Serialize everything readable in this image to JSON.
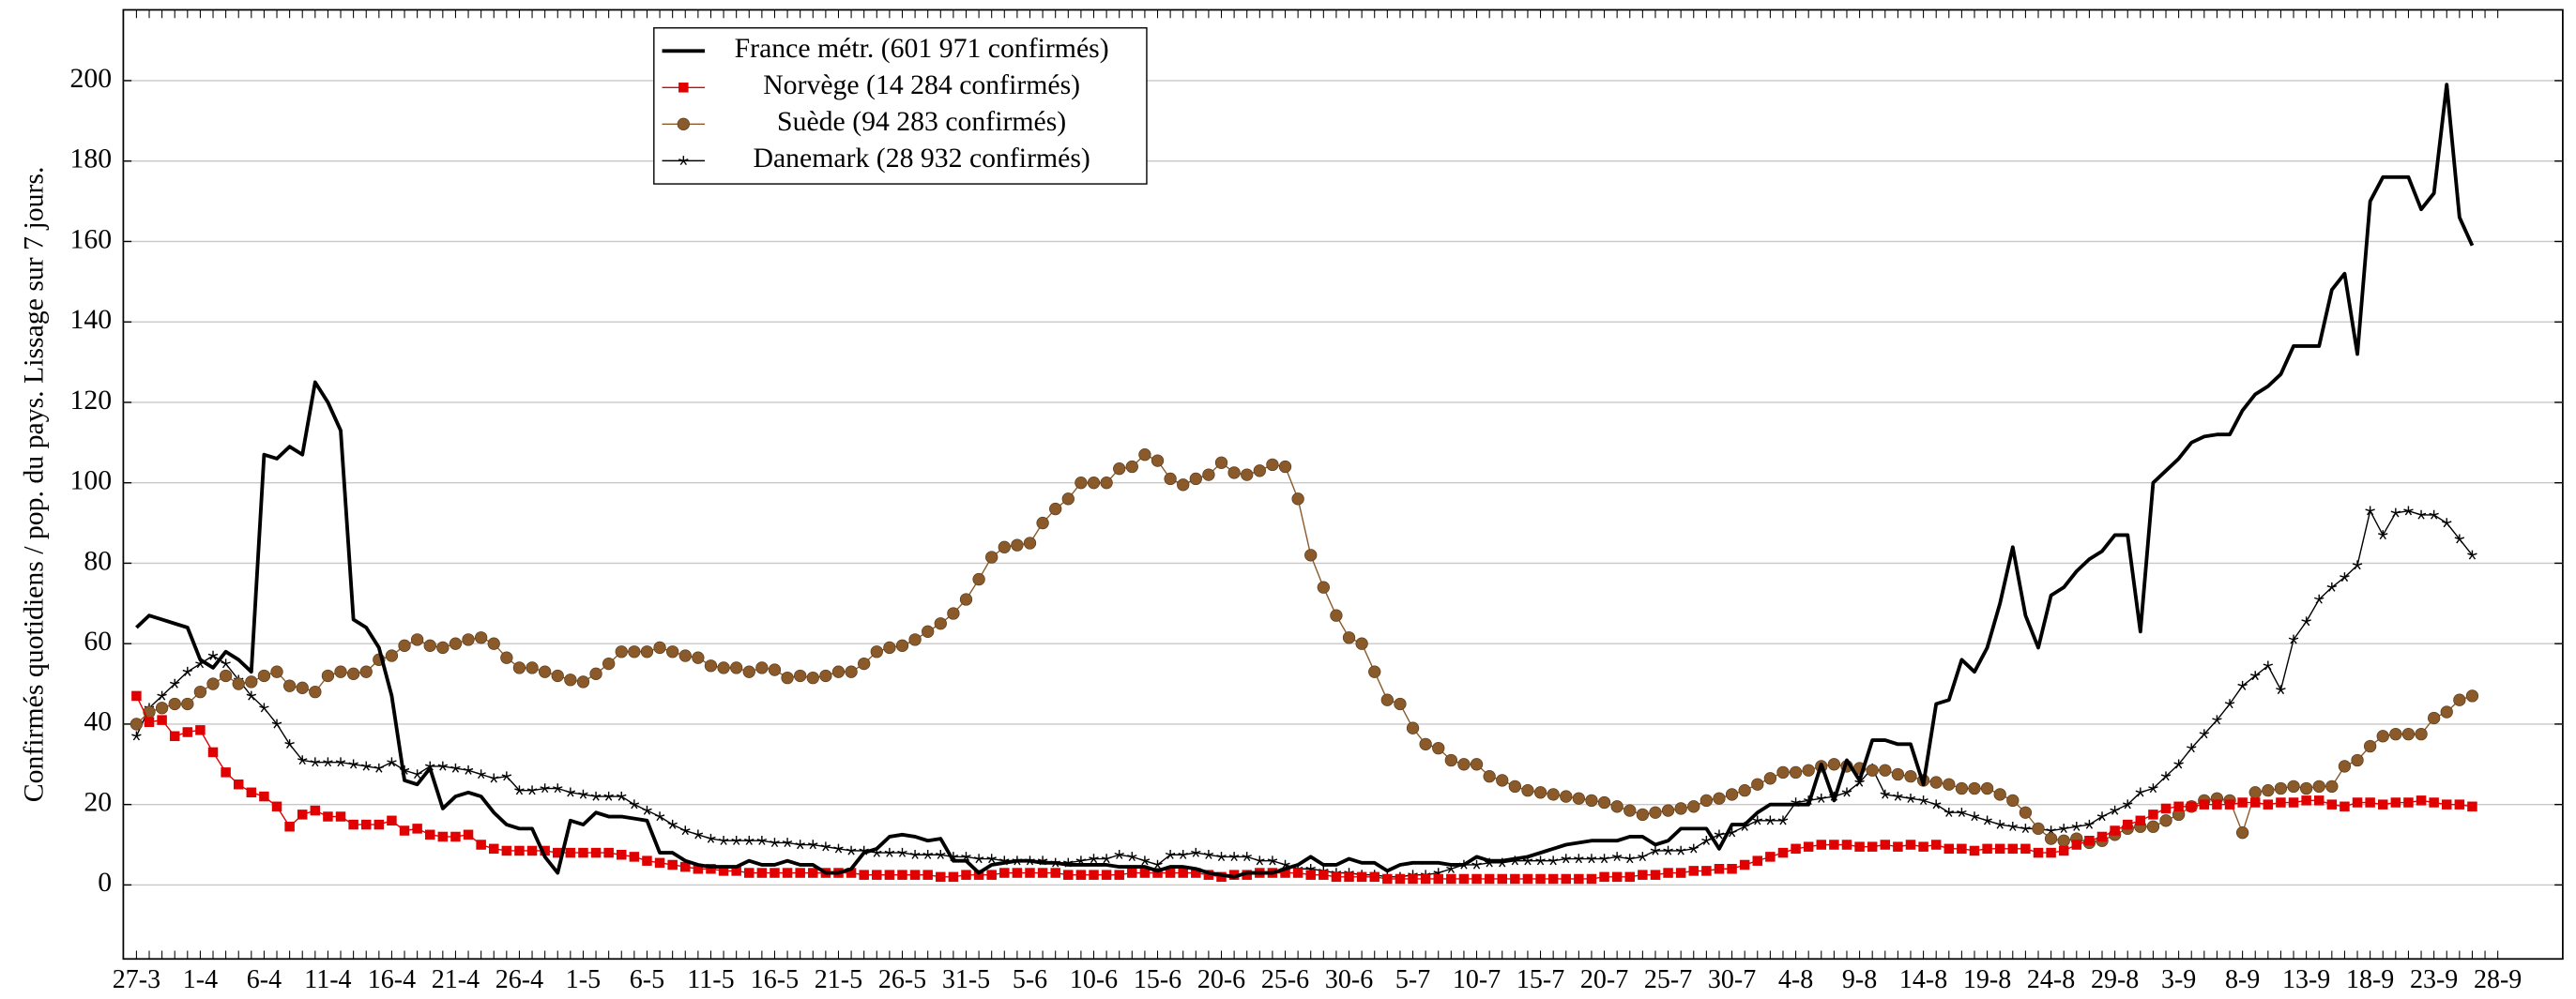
{
  "chart_data": {
    "type": "line",
    "y_label": "Confirmés quotidiens / pop. du pays. Lissage sur 7 jours.",
    "ylim": [
      -18.4,
      217.6
    ],
    "yticks": [
      0,
      20,
      40,
      60,
      80,
      100,
      120,
      140,
      160,
      180,
      200
    ],
    "grid": true,
    "categories": [
      "27-3",
      null,
      null,
      null,
      null,
      "1-4",
      null,
      null,
      null,
      null,
      "6-4",
      null,
      null,
      null,
      null,
      "11-4",
      null,
      null,
      null,
      null,
      "16-4",
      null,
      null,
      null,
      null,
      "21-4",
      null,
      null,
      null,
      null,
      "26-4",
      null,
      null,
      null,
      null,
      "1-5",
      null,
      null,
      null,
      null,
      "6-5",
      null,
      null,
      null,
      null,
      "11-5",
      null,
      null,
      null,
      null,
      "16-5",
      null,
      null,
      null,
      null,
      "21-5",
      null,
      null,
      null,
      null,
      "26-5",
      null,
      null,
      null,
      null,
      "31-5",
      null,
      null,
      null,
      null,
      "5-6",
      null,
      null,
      null,
      null,
      "10-6",
      null,
      null,
      null,
      null,
      "15-6",
      null,
      null,
      null,
      null,
      "20-6",
      null,
      null,
      null,
      null,
      "25-6",
      null,
      null,
      null,
      null,
      "30-6",
      null,
      null,
      null,
      null,
      "5-7",
      null,
      null,
      null,
      null,
      "10-7",
      null,
      null,
      null,
      null,
      "15-7",
      null,
      null,
      null,
      null,
      "20-7",
      null,
      null,
      null,
      null,
      "25-7",
      null,
      null,
      null,
      null,
      "30-7",
      null,
      null,
      null,
      null,
      "4-8",
      null,
      null,
      null,
      null,
      "9-8",
      null,
      null,
      null,
      null,
      "14-8",
      null,
      null,
      null,
      null,
      "19-8",
      null,
      null,
      null,
      null,
      "24-8",
      null,
      null,
      null,
      null,
      "29-8",
      null,
      null,
      null,
      null,
      "3-9",
      null,
      null,
      null,
      null,
      "8-9",
      null,
      null,
      null,
      null,
      "13-9",
      null,
      null,
      null,
      null,
      "18-9",
      null,
      null,
      null,
      null,
      "23-9",
      null,
      null,
      null,
      null,
      "28-9"
    ],
    "series": [
      {
        "name": "France métr. (601 971 confirmés)",
        "color": "#000000",
        "marker": "none",
        "line_width": 2.2,
        "values": [
          64,
          67,
          66,
          65,
          64,
          56,
          54,
          58,
          56,
          53,
          107,
          106,
          109,
          107,
          125,
          120,
          113,
          66,
          64,
          59,
          47,
          26,
          25,
          29,
          19,
          22,
          23,
          22,
          18,
          15,
          14,
          14,
          7,
          3,
          16,
          15,
          18,
          17,
          17,
          16.5,
          16,
          8,
          8,
          6,
          5,
          4.5,
          4.5,
          4.5,
          6,
          5,
          5,
          6,
          5,
          5,
          3,
          3,
          4,
          8,
          9,
          12,
          12.5,
          12,
          11,
          11.5,
          6,
          6,
          3,
          5,
          5.5,
          6,
          6,
          5.5,
          5.5,
          5,
          5,
          5,
          5,
          4.5,
          4.5,
          4.5,
          3.5,
          4.5,
          4.5,
          4,
          3,
          2.5,
          2,
          3,
          3,
          3,
          4,
          5,
          7,
          5,
          5,
          6.5,
          5.5,
          5.5,
          3.5,
          5,
          5.5,
          5.5,
          5.5,
          5,
          5,
          7,
          6,
          6,
          6.5,
          7,
          8,
          9,
          10,
          10.5,
          11,
          11,
          11,
          12,
          12,
          10,
          11,
          14,
          14,
          14,
          9,
          15,
          15,
          18,
          20,
          20,
          20,
          20,
          30,
          21,
          31,
          26,
          36,
          36,
          35,
          35,
          25,
          45,
          46,
          56,
          53,
          59,
          70,
          84,
          67,
          59,
          72,
          74,
          78,
          81,
          83,
          87,
          87,
          63,
          100,
          103,
          106,
          110,
          111.5,
          112,
          112,
          118,
          122,
          124,
          127,
          134,
          134,
          134,
          148,
          152,
          132,
          170,
          176,
          176,
          176,
          168,
          172,
          199,
          166,
          159,
          null,
          null
        ]
      },
      {
        "name": "Norvège (14 284 confirmés)",
        "color": "#e00000",
        "marker": "square",
        "line_width": 0.8,
        "values": [
          47,
          40.5,
          41,
          37,
          38,
          38.5,
          33,
          28,
          25,
          23,
          22,
          19.5,
          14.5,
          17.5,
          18.5,
          17,
          17,
          15,
          15,
          15,
          16,
          13.5,
          14,
          12.5,
          12,
          12,
          12.5,
          10,
          9,
          8.5,
          8.5,
          8.5,
          8.5,
          8,
          8,
          8,
          8,
          8,
          7.5,
          7,
          6,
          5.5,
          5,
          4.5,
          4,
          4,
          3.5,
          3.5,
          3,
          3,
          3,
          3,
          3,
          3,
          3,
          3,
          3,
          2.5,
          2.5,
          2.5,
          2.5,
          2.5,
          2.5,
          2,
          2,
          2.5,
          2.5,
          2.5,
          3,
          3,
          3,
          3,
          3,
          2.5,
          2.5,
          2.5,
          2.5,
          2.5,
          3,
          3,
          3,
          3,
          3,
          3,
          2.5,
          2,
          2.5,
          2.5,
          3,
          3,
          3,
          3,
          2.5,
          2.5,
          2,
          2,
          2,
          2,
          1.5,
          1.5,
          1.5,
          1.5,
          1.5,
          1.5,
          1.5,
          1.5,
          1.5,
          1.5,
          1.5,
          1.5,
          1.5,
          1.5,
          1.5,
          1.5,
          1.5,
          2,
          2,
          2,
          2.5,
          2.5,
          3,
          3,
          3.5,
          3.5,
          4,
          4,
          5,
          6,
          7,
          8,
          9,
          9.5,
          10,
          10,
          10,
          9.5,
          9.5,
          10,
          9.5,
          10,
          9.5,
          10,
          9,
          9,
          8.5,
          9,
          9,
          9,
          9,
          8,
          8,
          8.5,
          10,
          11,
          12,
          13.5,
          15,
          16,
          17.5,
          19,
          19.5,
          19.5,
          20,
          20,
          20,
          20.5,
          20.5,
          20,
          20.5,
          20.5,
          21,
          21,
          20,
          19.5,
          20.5,
          20.5,
          20,
          20.5,
          20.5,
          21,
          20.5,
          20,
          20,
          19.5,
          null,
          null
        ]
      },
      {
        "name": "Suède (94 283 confirmés)",
        "color": "#8b5a2b",
        "marker": "circle",
        "line_width": 0.8,
        "values": [
          40,
          43,
          44,
          45,
          45,
          48,
          50,
          52,
          50,
          50.5,
          52,
          53,
          49.5,
          49,
          48,
          52,
          53,
          52.5,
          53,
          56,
          57,
          59.5,
          61,
          59.5,
          59,
          60,
          61,
          61.5,
          60,
          56.5,
          54,
          54,
          53,
          52,
          51,
          50.5,
          52.5,
          55,
          58,
          58,
          58,
          59,
          58,
          57,
          56.5,
          54.5,
          54,
          54,
          53,
          54,
          53.5,
          51.5,
          52,
          51.5,
          52,
          53,
          53,
          55,
          58,
          59,
          59.5,
          61,
          63,
          65,
          67.5,
          71,
          76,
          81.5,
          84,
          84.5,
          85,
          90,
          93.5,
          96,
          100,
          100,
          100,
          103.5,
          104,
          107,
          105.5,
          101,
          99.5,
          101,
          102,
          105,
          102.5,
          102,
          103,
          104.5,
          104,
          96,
          82,
          74,
          67,
          61.5,
          60,
          53,
          46,
          45,
          39,
          35,
          34,
          31,
          30,
          30,
          27,
          26,
          24.5,
          23.5,
          23,
          22.5,
          22,
          21.5,
          21,
          20.5,
          19.5,
          18.5,
          17.5,
          18,
          18.5,
          19,
          19.5,
          21,
          21.5,
          22.5,
          23.5,
          25,
          26.5,
          28,
          28,
          28.5,
          29.5,
          30,
          29.5,
          29,
          28.5,
          28.5,
          27.5,
          27,
          26,
          25.5,
          25,
          24,
          24,
          24,
          22.5,
          21,
          18,
          14,
          11.5,
          11,
          11.5,
          10.5,
          11,
          12.5,
          14,
          14.5,
          14.5,
          16,
          17.5,
          19.5,
          21,
          21.5,
          21,
          13,
          23,
          23.5,
          24,
          24.5,
          24,
          24.5,
          24.5,
          29.5,
          31,
          34.5,
          37,
          37.5,
          37.5,
          37.5,
          41.5,
          43,
          46,
          47,
          null,
          null
        ]
      },
      {
        "name": "Danemark (28 932 confirmés)",
        "color": "#000000",
        "marker": "star",
        "line_width": 0.8,
        "values": [
          37,
          44,
          47,
          50,
          53,
          55,
          57,
          55,
          51,
          47,
          44,
          40,
          35,
          31,
          30.5,
          30.5,
          30.5,
          30,
          29.5,
          29,
          30.5,
          28.5,
          27.5,
          29.5,
          29.5,
          29,
          28.5,
          27.5,
          26.5,
          27,
          23.5,
          23.5,
          24,
          24,
          23,
          22.5,
          22,
          22,
          22,
          20,
          18.5,
          17,
          15,
          13.5,
          12.5,
          11.5,
          11,
          11,
          11,
          11,
          10.5,
          10.5,
          10,
          10,
          9.5,
          9,
          8.5,
          8.5,
          8,
          8,
          8,
          7.5,
          7.5,
          7.5,
          7,
          7,
          6.5,
          6.5,
          6,
          6,
          6,
          6,
          5.5,
          5.5,
          6,
          6.5,
          6.5,
          7.5,
          7,
          6,
          5,
          7.5,
          7.5,
          8,
          7.5,
          7,
          7,
          7,
          6,
          6,
          5,
          4,
          4,
          3.5,
          3,
          3,
          2.5,
          2.5,
          2,
          2,
          2.5,
          2.5,
          3,
          4,
          5,
          5,
          5.5,
          5.5,
          6,
          6,
          6,
          6,
          6.5,
          6.5,
          6.5,
          6.5,
          7,
          6.5,
          7,
          8.5,
          8.5,
          8.5,
          9,
          11,
          12.5,
          13,
          14.5,
          16,
          16,
          16,
          20.5,
          21,
          21.5,
          22,
          23,
          25.5,
          29,
          22.5,
          22,
          21.5,
          21,
          20,
          18,
          18,
          17,
          16,
          15,
          14.5,
          14,
          14,
          13.5,
          14,
          14.5,
          15,
          17,
          18.5,
          20,
          23,
          24,
          27,
          30,
          34,
          37.5,
          41,
          45,
          49.5,
          52,
          54.5,
          48.5,
          61,
          65.5,
          71,
          74,
          76.5,
          79.5,
          93,
          87,
          92.5,
          93,
          92,
          92,
          90,
          86,
          82,
          null,
          null
        ]
      }
    ]
  }
}
